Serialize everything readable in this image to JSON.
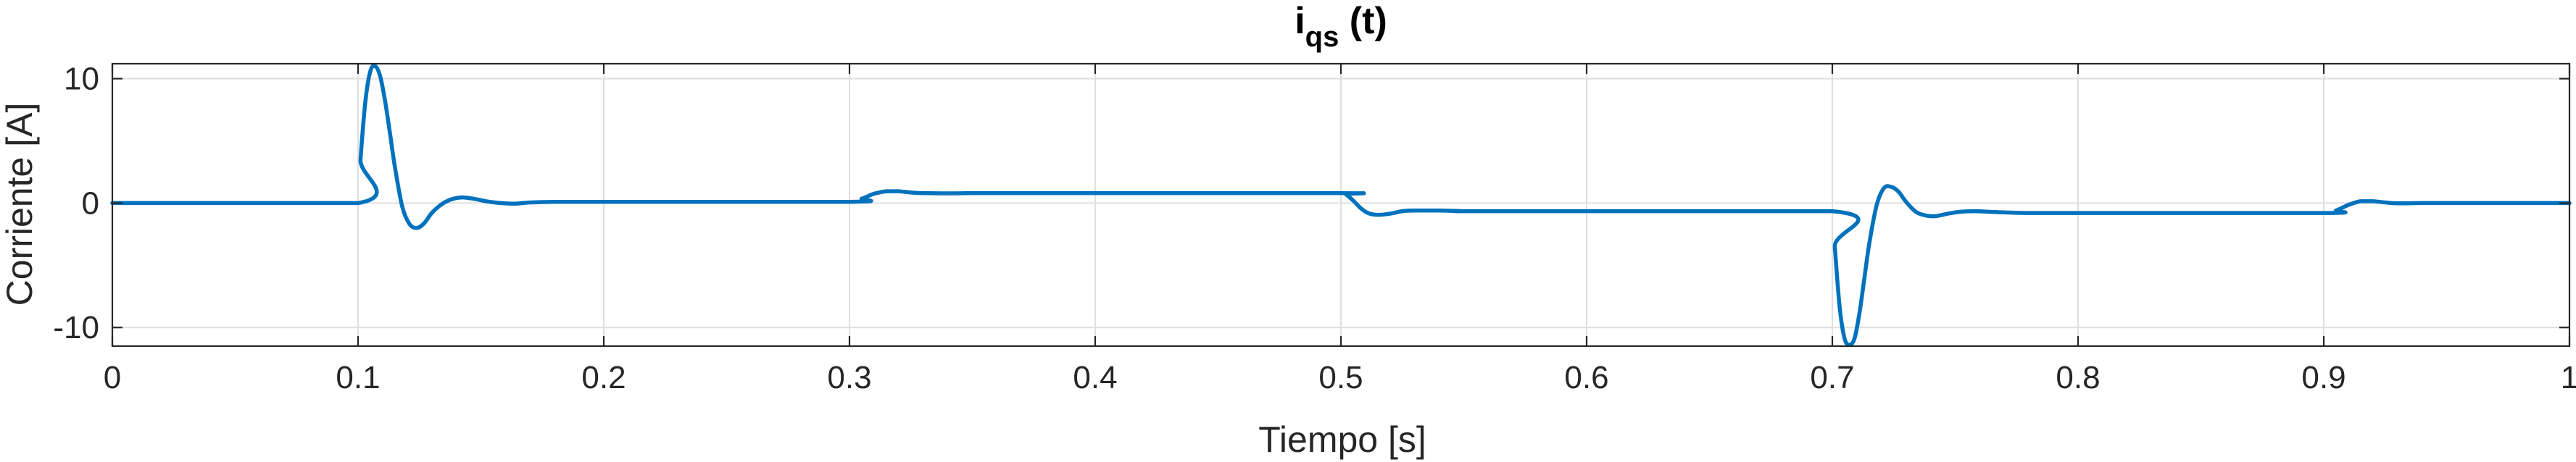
{
  "chart_data": {
    "type": "line",
    "title": {
      "main": "i",
      "subscript": "qs",
      "suffix": " (t)"
    },
    "xlabel": "Tiempo [s]",
    "ylabel": "Corriente [A]",
    "xlim": [
      0,
      1
    ],
    "ylim": [
      -11.5,
      11.2
    ],
    "xticks": [
      0,
      0.1,
      0.2,
      0.3,
      0.4,
      0.5,
      0.6,
      0.7,
      0.8,
      0.9,
      1
    ],
    "xtick_labels": [
      "0",
      "0.1",
      "0.2",
      "0.3",
      "0.4",
      "0.5",
      "0.6",
      "0.7",
      "0.8",
      "0.9",
      "1"
    ],
    "yticks": [
      -10,
      0,
      10
    ],
    "ytick_labels": [
      "-10",
      "0",
      "10"
    ],
    "grid": true,
    "box": true,
    "colors": {
      "line": "#0072BD",
      "grid": "#DFDFDF",
      "axes": "#262626"
    },
    "series": [
      {
        "x": [
          0,
          0.1,
          0.101,
          0.103,
          0.105,
          0.107,
          0.109,
          0.111,
          0.113,
          0.115,
          0.118,
          0.121,
          0.124,
          0.127,
          0.13,
          0.134,
          0.138,
          0.142,
          0.147,
          0.152,
          0.158,
          0.164,
          0.17,
          0.18,
          0.19,
          0.2,
          0.3,
          0.305,
          0.31,
          0.315,
          0.32,
          0.325,
          0.33,
          0.34,
          0.35,
          0.36,
          0.37,
          0.38,
          0.5,
          0.502,
          0.505,
          0.508,
          0.511,
          0.515,
          0.52,
          0.525,
          0.53,
          0.54,
          0.55,
          0.56,
          0.7,
          0.701,
          0.703,
          0.705,
          0.707,
          0.709,
          0.711,
          0.713,
          0.715,
          0.718,
          0.721,
          0.724,
          0.727,
          0.73,
          0.734,
          0.738,
          0.742,
          0.747,
          0.752,
          0.758,
          0.764,
          0.77,
          0.78,
          0.79,
          0.8,
          0.9,
          0.905,
          0.91,
          0.915,
          0.92,
          0.925,
          0.93,
          0.94,
          0.95,
          0.96,
          0.97,
          1.0
        ],
        "y": [
          0,
          0,
          3.5,
          8.2,
          10.6,
          11.0,
          10.2,
          8.2,
          5.6,
          2.9,
          -0.3,
          -1.7,
          -2.0,
          -1.6,
          -0.8,
          -0.1,
          0.3,
          0.45,
          0.35,
          0.15,
          0,
          -0.05,
          0.05,
          0.1,
          0.1,
          0.1,
          0.1,
          0.35,
          0.75,
          0.95,
          0.95,
          0.85,
          0.8,
          0.78,
          0.8,
          0.8,
          0.8,
          0.8,
          0.8,
          0.7,
          0.2,
          -0.4,
          -0.8,
          -0.95,
          -0.85,
          -0.65,
          -0.6,
          -0.6,
          -0.65,
          -0.65,
          -0.65,
          -3.5,
          -8.4,
          -10.9,
          -11.4,
          -10.9,
          -8.9,
          -6.1,
          -3.3,
          -0.2,
          1.2,
          1.3,
          0.9,
          0.1,
          -0.7,
          -1.0,
          -1.05,
          -0.85,
          -0.7,
          -0.65,
          -0.7,
          -0.75,
          -0.8,
          -0.8,
          -0.8,
          -0.8,
          -0.6,
          -0.15,
          0.15,
          0.15,
          0.05,
          -0.02,
          0,
          0,
          0,
          0,
          0
        ]
      }
    ]
  }
}
